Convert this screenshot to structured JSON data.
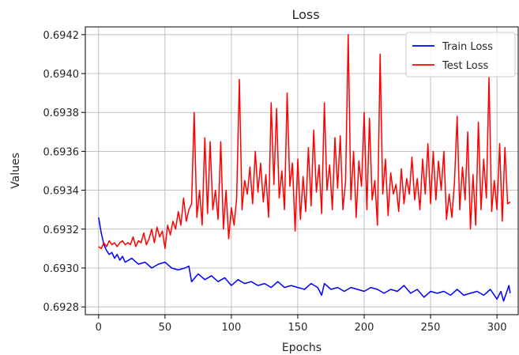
{
  "chart_data": {
    "type": "line",
    "title": "Loss",
    "xlabel": "Epochs",
    "ylabel": "Values",
    "xlim": [
      -10,
      316
    ],
    "ylim": [
      0.69276,
      0.69424
    ],
    "grid": true,
    "legend_position": "top-right",
    "x_ticks": [
      0,
      50,
      100,
      150,
      200,
      250,
      300
    ],
    "x_tick_labels": [
      "0",
      "50",
      "100",
      "150",
      "200",
      "250",
      "300"
    ],
    "y_ticks": [
      0.6928,
      0.693,
      0.6932,
      0.6934,
      0.6936,
      0.6938,
      0.694,
      0.6942
    ],
    "y_tick_labels": [
      "0.6928",
      "0.6930",
      "0.6932",
      "0.6934",
      "0.6936",
      "0.6938",
      "0.6940",
      "0.6942"
    ],
    "series": [
      {
        "name": "Train Loss",
        "color": "#0000ff",
        "x": [
          0,
          2,
          4,
          6,
          8,
          10,
          12,
          14,
          16,
          18,
          20,
          25,
          30,
          35,
          40,
          45,
          50,
          55,
          60,
          65,
          68,
          70,
          75,
          80,
          85,
          90,
          95,
          100,
          105,
          110,
          115,
          120,
          125,
          130,
          135,
          140,
          145,
          150,
          155,
          160,
          165,
          168,
          170,
          175,
          180,
          185,
          190,
          195,
          200,
          205,
          210,
          215,
          220,
          225,
          230,
          235,
          240,
          245,
          250,
          255,
          260,
          265,
          270,
          275,
          280,
          285,
          290,
          295,
          300,
          303,
          305,
          307,
          309,
          310
        ],
        "values": [
          0.69326,
          0.69318,
          0.69312,
          0.69309,
          0.69307,
          0.69308,
          0.69305,
          0.69307,
          0.69304,
          0.69306,
          0.69303,
          0.69305,
          0.69302,
          0.69303,
          0.693,
          0.69302,
          0.69303,
          0.693,
          0.69299,
          0.693,
          0.69301,
          0.69293,
          0.69297,
          0.69294,
          0.69296,
          0.69293,
          0.69295,
          0.69291,
          0.69294,
          0.69292,
          0.69293,
          0.69291,
          0.69292,
          0.6929,
          0.69293,
          0.6929,
          0.69291,
          0.6929,
          0.69289,
          0.69292,
          0.6929,
          0.69286,
          0.69292,
          0.69289,
          0.6929,
          0.69288,
          0.6929,
          0.69289,
          0.69288,
          0.6929,
          0.69289,
          0.69287,
          0.69289,
          0.69288,
          0.69291,
          0.69287,
          0.69289,
          0.69285,
          0.69288,
          0.69287,
          0.69288,
          0.69286,
          0.69289,
          0.69286,
          0.69287,
          0.69288,
          0.69286,
          0.69289,
          0.69284,
          0.69288,
          0.69283,
          0.69287,
          0.69291,
          0.69287
        ]
      },
      {
        "name": "Test Loss",
        "color": "#ff0000",
        "x": [
          0,
          2,
          4,
          6,
          8,
          10,
          12,
          14,
          16,
          18,
          20,
          22,
          24,
          26,
          28,
          30,
          32,
          34,
          36,
          38,
          40,
          42,
          44,
          46,
          48,
          50,
          52,
          54,
          56,
          58,
          60,
          62,
          64,
          66,
          68,
          70,
          72,
          74,
          76,
          78,
          80,
          82,
          84,
          86,
          88,
          90,
          92,
          94,
          96,
          98,
          100,
          102,
          104,
          106,
          108,
          110,
          112,
          114,
          116,
          118,
          120,
          122,
          124,
          126,
          128,
          130,
          132,
          134,
          136,
          138,
          140,
          142,
          144,
          146,
          148,
          150,
          152,
          154,
          156,
          158,
          160,
          162,
          164,
          166,
          168,
          170,
          172,
          174,
          176,
          178,
          180,
          182,
          184,
          186,
          188,
          190,
          192,
          194,
          196,
          198,
          200,
          202,
          204,
          206,
          208,
          210,
          212,
          214,
          216,
          218,
          220,
          222,
          224,
          226,
          228,
          230,
          232,
          234,
          236,
          238,
          240,
          242,
          244,
          246,
          248,
          250,
          252,
          254,
          256,
          258,
          260,
          262,
          264,
          266,
          268,
          270,
          272,
          274,
          276,
          278,
          280,
          282,
          284,
          286,
          288,
          290,
          292,
          294,
          296,
          298,
          300,
          302,
          304,
          306,
          308,
          310
        ],
        "values": [
          0.69311,
          0.6931,
          0.69313,
          0.69311,
          0.69314,
          0.69312,
          0.69313,
          0.69311,
          0.69313,
          0.69314,
          0.69312,
          0.69313,
          0.69312,
          0.69316,
          0.69311,
          0.69314,
          0.69313,
          0.69318,
          0.69312,
          0.69315,
          0.6932,
          0.69313,
          0.69321,
          0.69316,
          0.69319,
          0.6931,
          0.69322,
          0.69317,
          0.69324,
          0.6932,
          0.69329,
          0.69322,
          0.69336,
          0.69324,
          0.6933,
          0.69333,
          0.6938,
          0.69326,
          0.6934,
          0.69322,
          0.69367,
          0.69328,
          0.69365,
          0.6933,
          0.6934,
          0.69325,
          0.69365,
          0.6932,
          0.6934,
          0.69315,
          0.69331,
          0.69322,
          0.69336,
          0.69397,
          0.6933,
          0.69345,
          0.69338,
          0.69352,
          0.69333,
          0.6936,
          0.69339,
          0.69354,
          0.69334,
          0.69348,
          0.69326,
          0.69385,
          0.69343,
          0.69382,
          0.69336,
          0.6935,
          0.6933,
          0.6939,
          0.69342,
          0.69354,
          0.69319,
          0.69356,
          0.69325,
          0.69347,
          0.69329,
          0.69362,
          0.69332,
          0.69371,
          0.69339,
          0.69353,
          0.69328,
          0.69385,
          0.6934,
          0.69353,
          0.6933,
          0.69367,
          0.69341,
          0.69368,
          0.6933,
          0.69345,
          0.6942,
          0.69335,
          0.6936,
          0.69326,
          0.69355,
          0.69342,
          0.6938,
          0.6933,
          0.69377,
          0.69335,
          0.69345,
          0.69322,
          0.6941,
          0.69338,
          0.69356,
          0.69327,
          0.69349,
          0.69338,
          0.69343,
          0.69329,
          0.69351,
          0.69333,
          0.69346,
          0.69338,
          0.69357,
          0.69335,
          0.69346,
          0.6933,
          0.69356,
          0.69338,
          0.69364,
          0.69333,
          0.6936,
          0.69335,
          0.69355,
          0.6934,
          0.6936,
          0.69325,
          0.69338,
          0.69326,
          0.69344,
          0.69378,
          0.6933,
          0.69352,
          0.69335,
          0.6937,
          0.6932,
          0.69348,
          0.69322,
          0.69375,
          0.6933,
          0.69356,
          0.69336,
          0.69398,
          0.69329,
          0.69345,
          0.6933,
          0.69364,
          0.69324,
          0.69362,
          0.69333,
          0.69334
        ]
      }
    ]
  }
}
